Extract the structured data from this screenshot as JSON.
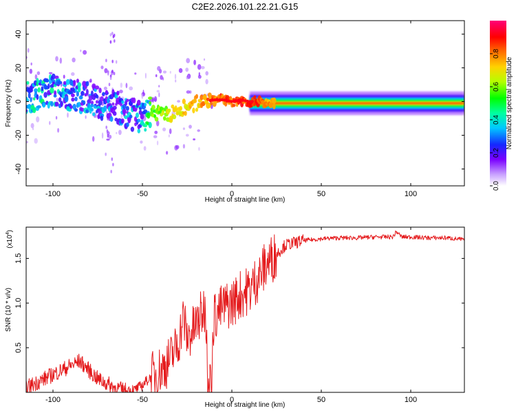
{
  "figure": {
    "title": "C2E2.2026.101.22.21.G15"
  },
  "chart_data": [
    {
      "type": "heatmap",
      "panel": "top",
      "xlabel": "Height of straight line (km)",
      "ylabel": "Frequency (Hz)",
      "xlim": [
        -115,
        130
      ],
      "ylim": [
        -50,
        48
      ],
      "xticks": [
        -100,
        -50,
        0,
        50,
        100
      ],
      "yticks": [
        -40,
        -20,
        0,
        20,
        40
      ],
      "colorbar": {
        "label": "Normalized spectral amplitude",
        "range": [
          0,
          1
        ],
        "ticks": [
          "0.0",
          "0.2",
          "0.4",
          "0.6",
          "0.8"
        ],
        "colormap": "rainbow: white-violet-blue-cyan-green-yellow-orange-red-magenta"
      },
      "ridge": {
        "x": [
          -115,
          -105,
          -100,
          -90,
          -80,
          -70,
          -60,
          -55,
          -50,
          -45,
          -40,
          -35,
          -30,
          -25,
          -20,
          -15,
          -10,
          -5,
          0,
          5,
          10,
          15,
          20,
          30,
          50,
          80,
          100,
          130
        ],
        "freq": [
          3,
          5,
          7,
          4,
          2,
          -2,
          -5,
          -8,
          -9,
          -6,
          -7,
          -8,
          -5,
          -3,
          -1,
          0,
          1,
          1,
          0,
          1,
          0,
          0,
          -1,
          -1,
          -1,
          -1,
          0,
          0
        ],
        "peak_amplitude": [
          0.45,
          0.5,
          0.45,
          0.42,
          0.4,
          0.38,
          0.38,
          0.4,
          0.45,
          0.62,
          0.7,
          0.72,
          0.78,
          0.8,
          0.82,
          0.85,
          0.9,
          0.9,
          0.88,
          0.92,
          0.95,
          0.92,
          0.85,
          0.8,
          0.8,
          0.8,
          0.82,
          0.82
        ]
      }
    },
    {
      "type": "line",
      "panel": "bottom",
      "xlabel": "Height of straight line (km)",
      "ylabel": "SNR (10 * v/v)",
      "multiplier_label": "(x10",
      "multiplier_exp": "4",
      "multiplier_close": ")",
      "xlim": [
        -115,
        130
      ],
      "ylim": [
        0,
        1.85
      ],
      "xticks": [
        -100,
        -50,
        0,
        50,
        100
      ],
      "yticks": [
        "0.5",
        "1.0",
        "1.5"
      ],
      "color": "#e41a1c",
      "series": [
        {
          "x": [
            -115,
            -110,
            -105,
            -100,
            -95,
            -90,
            -85,
            -80,
            -75,
            -70,
            -65,
            -60,
            -55,
            -50,
            -45,
            -40,
            -35,
            -30,
            -27,
            -25,
            -20,
            -15,
            -12,
            -10,
            -5,
            0,
            5,
            10,
            15,
            20,
            25,
            30,
            40,
            50,
            60,
            70,
            80,
            90,
            92,
            95,
            100,
            110,
            120,
            130
          ],
          "y": [
            0.05,
            0.1,
            0.15,
            0.2,
            0.25,
            0.3,
            0.35,
            0.25,
            0.15,
            0.1,
            0.05,
            0.02,
            0.02,
            0.08,
            0.18,
            0.25,
            0.35,
            0.55,
            0.85,
            0.6,
            0.75,
            0.95,
            0.2,
            0.85,
            0.95,
            1.0,
            1.1,
            1.15,
            1.3,
            1.45,
            1.55,
            1.65,
            1.7,
            1.72,
            1.73,
            1.73,
            1.74,
            1.74,
            1.8,
            1.74,
            1.74,
            1.73,
            1.73,
            1.71
          ]
        }
      ]
    }
  ]
}
